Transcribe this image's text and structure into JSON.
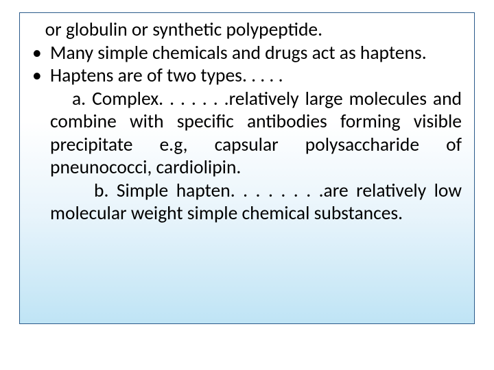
{
  "slide": {
    "background_color": "#ffffff",
    "box": {
      "border_color": "#2a5a8a",
      "gradient_top": "#ffffff",
      "gradient_bottom": "#bfe4f5",
      "text_color": "#000000",
      "font_family": "Calibri",
      "font_size_pt": 21,
      "line0": "   or globulin or synthetic polypeptide.",
      "bullets": [
        {
          "marker": "•",
          "text_justified": "Many simple chemicals and drugs act as haptens."
        },
        {
          "marker": "•",
          "text": "Haptens are of two types. . . . ."
        }
      ],
      "sub_a": "a. Complex. . . . . . .relatively large molecules and combine with specific antibodies forming visible precipitate e.g, capsular polysaccharide of pneunococci, cardiolipin.",
      "sub_b": "b. Simple hapten. . . . . . . .are relatively low molecular weight simple chemical substances."
    }
  }
}
